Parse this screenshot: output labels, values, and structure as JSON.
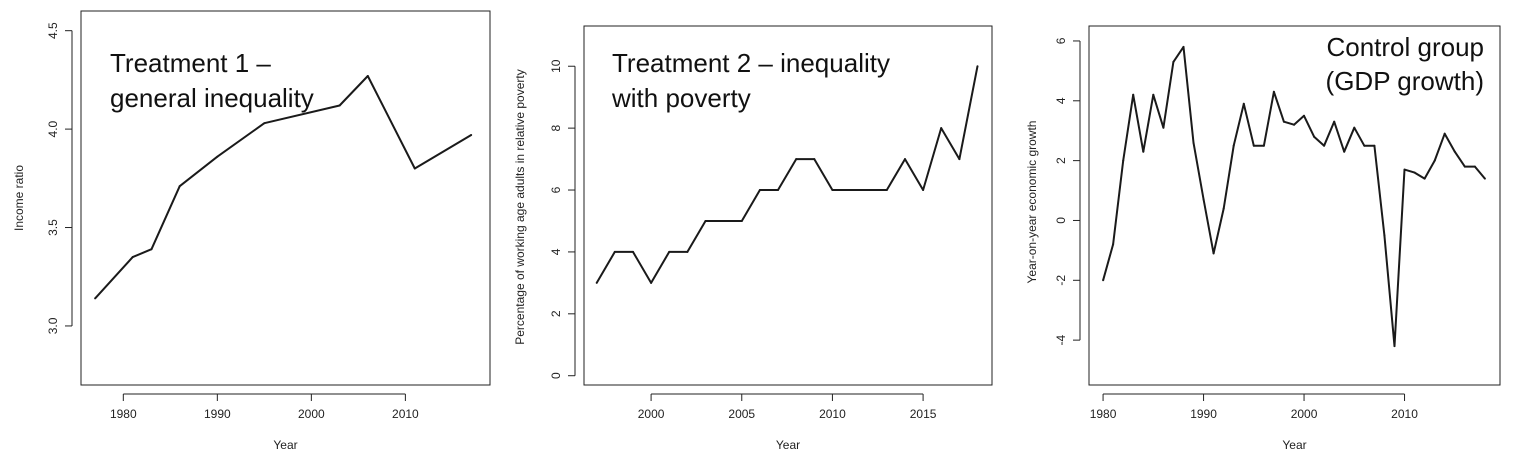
{
  "chart_data": [
    {
      "type": "line",
      "title_lines": [
        "Treatment 1 –",
        "general inequality"
      ],
      "xlabel": "Year",
      "ylabel": "Income ratio",
      "xlim": [
        1975.5,
        2019
      ],
      "ylim": [
        2.7,
        4.6
      ],
      "xticks": [
        1980,
        1990,
        2000,
        2010
      ],
      "yticks": [
        3.0,
        3.5,
        4.0,
        4.5
      ],
      "ytick_labels": [
        "3.0",
        "3.5",
        "4.0",
        "4.5"
      ],
      "grid": false,
      "x": [
        1977,
        1981,
        1983,
        1986,
        1990,
        1995,
        2003,
        2006,
        2011,
        2017
      ],
      "y": [
        3.14,
        3.35,
        3.39,
        3.71,
        3.86,
        4.03,
        4.12,
        4.27,
        3.8,
        3.97
      ]
    },
    {
      "type": "line",
      "title_lines": [
        "Treatment 2 – inequality",
        "with poverty"
      ],
      "xlabel": "Year",
      "ylabel": "Percentage of working age adults in relative poverty",
      "xlim": [
        1996.3,
        2018.8
      ],
      "ylim": [
        -0.3,
        11.3
      ],
      "xticks": [
        2000,
        2005,
        2010,
        2015
      ],
      "yticks": [
        0,
        2,
        4,
        6,
        8,
        10
      ],
      "ytick_labels": [
        "0",
        "2",
        "4",
        "6",
        "8",
        "10"
      ],
      "grid": false,
      "x": [
        1997,
        1998,
        1999,
        2000,
        2001,
        2002,
        2003,
        2004,
        2005,
        2006,
        2007,
        2008,
        2009,
        2010,
        2011,
        2012,
        2013,
        2014,
        2015,
        2016,
        2017,
        2018
      ],
      "y": [
        3,
        4,
        4,
        3,
        4,
        4,
        5,
        5,
        5,
        6,
        6,
        7,
        7,
        6,
        6,
        6,
        6,
        7,
        6,
        8,
        7,
        10
      ]
    },
    {
      "type": "line",
      "title_lines": [
        "Control group",
        "(GDP growth)"
      ],
      "xlabel": "Year",
      "ylabel": "Year-on-year economic growth",
      "xlim": [
        1978.6,
        2019.5
      ],
      "ylim": [
        -5.5,
        6.5
      ],
      "xticks": [
        1980,
        1990,
        2000,
        2010
      ],
      "yticks": [
        -4,
        -2,
        0,
        2,
        4,
        6
      ],
      "ytick_labels": [
        "-4",
        "-2",
        "0",
        "2",
        "4",
        "6"
      ],
      "grid": false,
      "x": [
        1980,
        1981,
        1982,
        1983,
        1984,
        1985,
        1986,
        1987,
        1988,
        1989,
        1990,
        1991,
        1992,
        1993,
        1994,
        1995,
        1996,
        1997,
        1998,
        1999,
        2000,
        2001,
        2002,
        2003,
        2004,
        2005,
        2006,
        2007,
        2008,
        2009,
        2010,
        2011,
        2012,
        2013,
        2014,
        2015,
        2016,
        2017,
        2018
      ],
      "y": [
        -2.0,
        -0.8,
        2.0,
        4.2,
        2.3,
        4.2,
        3.1,
        5.3,
        5.8,
        2.6,
        0.7,
        -1.1,
        0.4,
        2.5,
        3.9,
        2.5,
        2.5,
        4.3,
        3.3,
        3.2,
        3.5,
        2.8,
        2.5,
        3.3,
        2.3,
        3.1,
        2.5,
        2.5,
        -0.5,
        -4.2,
        1.7,
        1.6,
        1.4,
        2.0,
        2.9,
        2.3,
        1.8,
        1.8,
        1.4
      ]
    }
  ]
}
